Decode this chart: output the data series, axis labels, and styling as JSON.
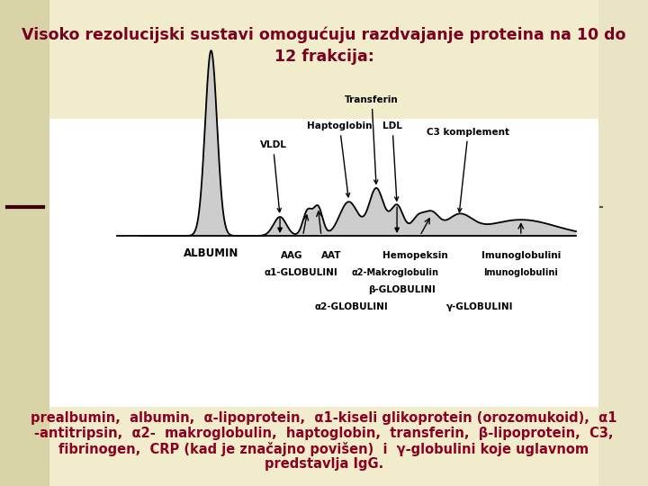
{
  "bg_color": "#f0eccc",
  "white_box_color": "#ffffff",
  "left_strip_color": "#d8d4a8",
  "right_strip_color": "#e8e4c4",
  "title": "Visoko rezolucijski sustavi omogućuju razdvajanje proteina na 10 do\n12 frakcija:",
  "title_color": "#7a0020",
  "title_fontsize": 12.5,
  "body_text_line1": "prealbumin,  albumin,  α-lipoprotein,  α1-kiseli glikoprotein (orozomukoid),  α1",
  "body_text_line2": "-antitripsin,  α2-  makroglobulin,  haptoglobin,  transferin,  β-lipoprotein,  C3,",
  "body_text_line3": "fibrinogen,  CRP (kad je značajno povišen)  i  γ-globulini koje uglavnom",
  "body_text_line4": "predstavlja IgG.",
  "body_color": "#8b0020",
  "body_fontsize": 10.5,
  "fill_color": "#c8c8c8",
  "line_color": "#000000"
}
